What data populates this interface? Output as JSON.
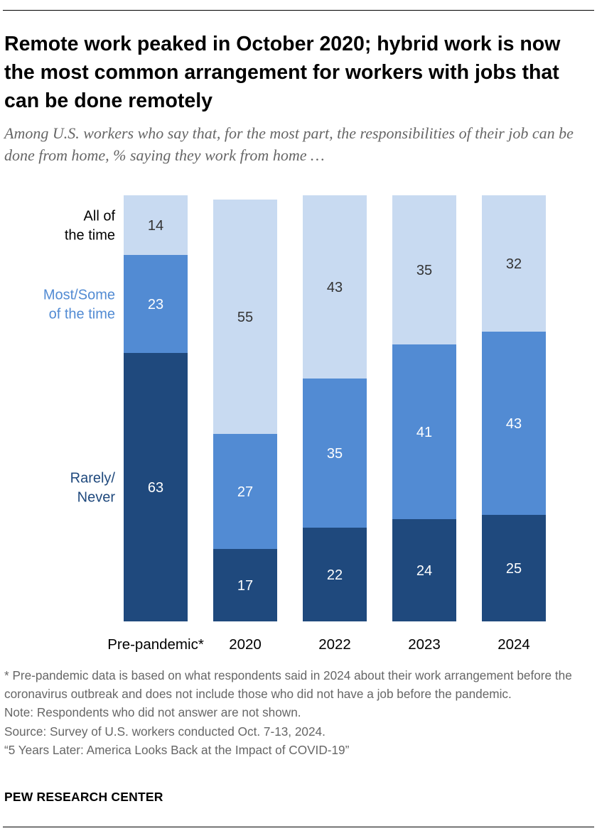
{
  "header": {
    "title": "Remote work peaked in October 2020; hybrid work is now the most common arrangement for workers with jobs that can be done remotely",
    "subtitle": "Among U.S. workers who say that, for the most part, the responsibilities of their job can be done from home, % saying they work from home …"
  },
  "chart_data": {
    "type": "bar",
    "stacked": true,
    "categories": [
      "Pre-pandemic*",
      "2020",
      "2022",
      "2023",
      "2024"
    ],
    "series": [
      {
        "name": "Rarely/ Never",
        "label_lines": [
          "Rarely/",
          "Never"
        ],
        "color": "#1f497d",
        "label_color": "#1f497d",
        "values": [
          63,
          17,
          22,
          24,
          25
        ]
      },
      {
        "name": "Most/Some of the time",
        "label_lines": [
          "Most/Some",
          "of the time"
        ],
        "color": "#528bd3",
        "label_color": "#528bd3",
        "values": [
          23,
          27,
          35,
          41,
          43
        ]
      },
      {
        "name": "All of the time",
        "label_lines": [
          "All of",
          "the time"
        ],
        "color": "#c8daf1",
        "label_color": "#000000",
        "values": [
          14,
          55,
          43,
          35,
          32
        ]
      }
    ],
    "value_label_colors": [
      "#ffffff",
      "#ffffff",
      "#333333"
    ],
    "legend_placement": "left of first bar",
    "grid": false
  },
  "notes": [
    "* Pre-pandemic data is based on what respondents said in 2024 about their work arrangement before the coronavirus outbreak and does not include those who did not have a job before the pandemic.",
    "Note: Respondents who did not answer are not shown.",
    "Source: Survey of U.S. workers conducted Oct. 7-13, 2024.",
    "“5 Years Later: America Looks Back at the Impact of COVID-19”"
  ],
  "brand": "PEW RESEARCH CENTER"
}
